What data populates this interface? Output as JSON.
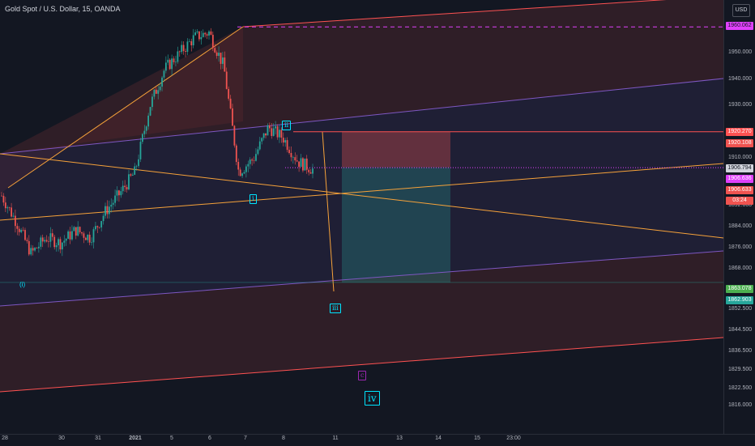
{
  "header": {
    "title": "Gold Spot / U.S. Dollar, 15, OANDA",
    "currency": "USD"
  },
  "colors": {
    "background": "#131722",
    "up": "#26a69a",
    "down": "#ef5350",
    "channel_red": "#ff5252",
    "channel_purple": "#7e57c2",
    "trend_orange": "#f6a23a",
    "magenta": "#e040fb",
    "wave_cyan": "#00e5ff",
    "wave_purple": "#9c27b0"
  },
  "price_tags": [
    {
      "value": "1960.062",
      "color": "#e040fb",
      "text_color": "#131722"
    },
    {
      "value": "1920.270",
      "color": "#ff5252"
    },
    {
      "value": "1920.108",
      "color": "#ef5350"
    },
    {
      "value": "1906.794",
      "color": "#d1d4dc",
      "text_color": "#131722"
    },
    {
      "value": "1906.636",
      "color": "#e040fb"
    },
    {
      "value": "1906.633",
      "color": "#ef5350"
    },
    {
      "value": "03:24",
      "color": "#ef5350"
    },
    {
      "value": "1863.078",
      "color": "#4caf50"
    },
    {
      "value": "1862.903",
      "color": "#26a69a"
    }
  ],
  "waves": [
    {
      "label": "(i)",
      "color": "#00e5ff",
      "style": "plain"
    },
    {
      "label": "i",
      "color": "#00e5ff",
      "style": "box"
    },
    {
      "label": "ii",
      "color": "#00e5ff",
      "style": "box"
    },
    {
      "label": "iii",
      "color": "#00e5ff",
      "style": "box"
    },
    {
      "label": "c",
      "color": "#9c27b0",
      "style": "box"
    },
    {
      "label": "iv",
      "color": "#00e5ff",
      "style": "big"
    }
  ],
  "chart_data": {
    "type": "candlestick",
    "instrument": "Gold Spot / U.S. Dollar",
    "timeframe": "15",
    "source": "OANDA",
    "y_ticks": [
      "1950.000",
      "1940.000",
      "1930.000",
      "1910.000",
      "1892.000",
      "1884.000",
      "1876.000",
      "1868.000",
      "1852.500",
      "1844.500",
      "1836.500",
      "1829.500",
      "1822.500",
      "1816.000"
    ],
    "x_ticks": [
      "28",
      "30",
      "31",
      "2021",
      "5",
      "6",
      "7",
      "8",
      "11",
      "13",
      "14",
      "15",
      "23:00"
    ],
    "price_path": [
      [
        "28",
        1896
      ],
      [
        "28",
        1886
      ],
      [
        "29",
        1874
      ],
      [
        "29",
        1880
      ],
      [
        "30",
        1878
      ],
      [
        "30",
        1883
      ],
      [
        "31",
        1880
      ],
      [
        "31",
        1890
      ],
      [
        "2021",
        1897
      ],
      [
        "2021",
        1905
      ],
      [
        "5",
        1930
      ],
      [
        "5",
        1944
      ],
      [
        "6",
        1950
      ],
      [
        "6",
        1956
      ],
      [
        "7",
        1958
      ],
      [
        "7",
        1945
      ],
      [
        "7",
        1905
      ],
      [
        "7",
        1910
      ],
      [
        "7",
        1922
      ],
      [
        "8",
        1918
      ],
      [
        "8",
        1909
      ],
      [
        "8",
        1906
      ]
    ],
    "position": {
      "entry": 1906.794,
      "stop": 1920.27,
      "target": 1863.078
    },
    "levels": {
      "dashed_high": 1960.062,
      "current_dotted": 1906.636
    }
  }
}
